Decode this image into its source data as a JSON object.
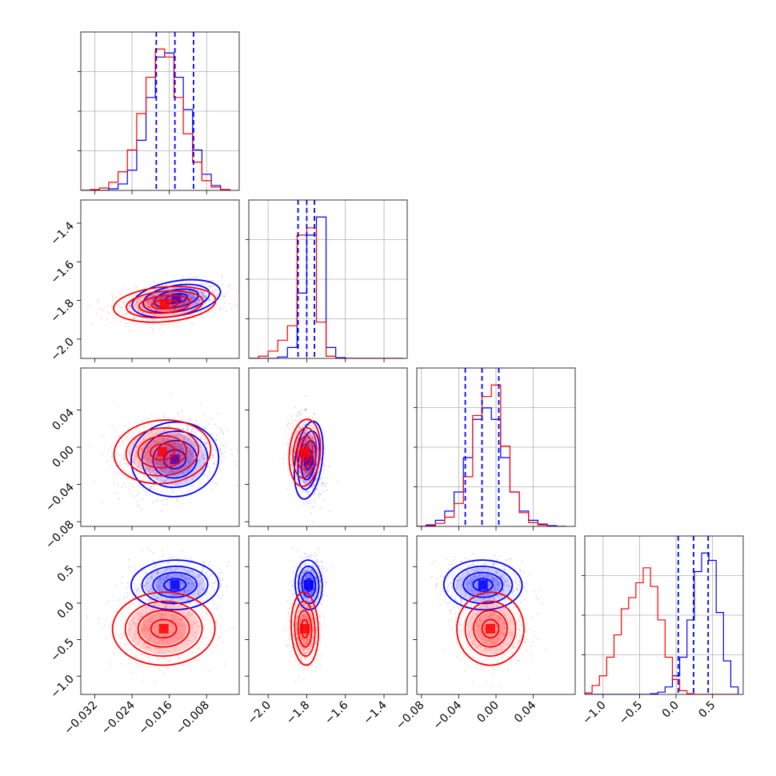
{
  "chart_data": {
    "type": "corner",
    "parameters": 4,
    "colors": {
      "series_a": "#0000ff",
      "series_b": "#ff0000"
    },
    "grid": true,
    "axes": [
      {
        "range": [
          -0.035,
          -0.001
        ],
        "ticks": [
          -0.032,
          -0.024,
          -0.016,
          -0.008
        ],
        "tick_labels": [
          "−0.032",
          "−0.024",
          "−0.016",
          "−0.008"
        ]
      },
      {
        "range": [
          -2.1,
          -1.28
        ],
        "ticks": [
          -2.0,
          -1.8,
          -1.6,
          -1.4
        ],
        "tick_labels": [
          "−2.0",
          "−1.8",
          "−1.6",
          "−1.4"
        ]
      },
      {
        "range": [
          -0.085,
          0.085
        ],
        "ticks": [
          -0.08,
          -0.04,
          0.0,
          0.04
        ],
        "tick_labels": [
          "−0.08",
          "−0.04",
          "0.00",
          "0.04"
        ]
      },
      {
        "range": [
          -1.25,
          0.92
        ],
        "ticks": [
          -1.0,
          -0.5,
          0.0,
          0.5
        ],
        "tick_labels": [
          "−1.0",
          "−0.5",
          "0.0",
          "0.5"
        ]
      }
    ],
    "y_axes": {
      "1": {
        "range": [
          -2.1,
          -1.28
        ],
        "ticks": [
          -2.0,
          -1.8,
          -1.6,
          -1.4
        ],
        "tick_labels": [
          "−2.0",
          "−1.8",
          "−1.6",
          "−1.4"
        ]
      },
      "2": {
        "range": [
          -0.085,
          0.085
        ],
        "ticks": [
          -0.08,
          -0.04,
          0.0,
          0.04
        ],
        "tick_labels": [
          "−0.08",
          "−0.04",
          "0.00",
          "0.04"
        ]
      },
      "3": {
        "range": [
          -1.25,
          0.92
        ],
        "ticks": [
          -1.0,
          -0.5,
          0.0,
          0.5
        ],
        "tick_labels": [
          "−1.0",
          "−0.5",
          "0.0",
          "0.5"
        ]
      }
    },
    "histograms": [
      {
        "param": 0,
        "bins": [
          -0.035,
          -0.033,
          -0.031,
          -0.029,
          -0.027,
          -0.025,
          -0.023,
          -0.021,
          -0.019,
          -0.017,
          -0.015,
          -0.013,
          -0.011,
          -0.009,
          -0.007,
          -0.005,
          -0.003
        ],
        "blue": [
          0,
          0,
          0,
          0.2,
          0.8,
          2.5,
          6.2,
          11.5,
          16.5,
          17.0,
          14.0,
          10.0,
          5.0,
          2.0,
          0.6,
          0.1
        ],
        "red": [
          0,
          0.1,
          0.3,
          1.0,
          2.3,
          5.0,
          9.5,
          14.0,
          17.5,
          16.5,
          11.5,
          7.0,
          3.5,
          1.2,
          0.4,
          0.1
        ],
        "quantiles": [
          -0.0188,
          -0.0148,
          -0.0108
        ]
      },
      {
        "param": 1,
        "bins": [
          -2.1,
          -2.05,
          -2.0,
          -1.95,
          -1.9,
          -1.85,
          -1.8,
          -1.75,
          -1.7,
          -1.65,
          -1.6,
          -1.55,
          -1.5,
          -1.45,
          -1.4,
          -1.35,
          -1.3
        ],
        "blue": [
          0,
          0,
          0,
          0.2,
          1.5,
          9.0,
          17.0,
          19.5,
          1.5,
          0.1,
          0,
          0,
          0,
          0,
          0,
          0
        ],
        "red": [
          0,
          0.3,
          1.0,
          2.5,
          4.5,
          17.0,
          18.0,
          5.0,
          0.3,
          0,
          0,
          0,
          0,
          0,
          0,
          0
        ],
        "quantiles": [
          -1.845,
          -1.8,
          -1.76
        ]
      },
      {
        "param": 2,
        "bins": [
          -0.085,
          -0.075,
          -0.065,
          -0.055,
          -0.045,
          -0.035,
          -0.025,
          -0.015,
          -0.005,
          0.005,
          0.015,
          0.025,
          0.035,
          0.045,
          0.055,
          0.065,
          0.075,
          0.085
        ],
        "blue": [
          0,
          0.2,
          0.8,
          2.0,
          4.5,
          9.0,
          14.0,
          15.5,
          14.0,
          9.0,
          4.5,
          2.0,
          0.8,
          0.3,
          0.1,
          0
        ],
        "red": [
          0,
          0.1,
          0.4,
          1.2,
          3.0,
          6.5,
          14.5,
          17.0,
          18.5,
          10.5,
          4.5,
          1.8,
          0.5,
          0.2,
          0,
          0
        ],
        "quantiles": [
          -0.033,
          -0.015,
          0.003
        ]
      },
      {
        "param": 3,
        "bins": [
          -1.25,
          -1.15,
          -1.05,
          -0.95,
          -0.85,
          -0.75,
          -0.65,
          -0.55,
          -0.45,
          -0.35,
          -0.25,
          -0.15,
          -0.05,
          0.05,
          0.15,
          0.25,
          0.35,
          0.45,
          0.55,
          0.65,
          0.75,
          0.85
        ],
        "blue": [
          0,
          0,
          0,
          0,
          0,
          0,
          0,
          0,
          0,
          0.1,
          0.3,
          1.0,
          2.5,
          5.0,
          10.0,
          16.5,
          19.0,
          18.0,
          11.0,
          4.5,
          1.0
        ],
        "red": [
          0.2,
          1.2,
          2.5,
          5.0,
          8.0,
          11.5,
          13.0,
          15.0,
          17.0,
          14.5,
          10.0,
          5.0,
          2.0,
          0.5,
          0.1,
          0,
          0,
          0,
          0,
          0,
          0
        ],
        "quantiles": [
          0.03,
          0.24,
          0.44
        ]
      }
    ],
    "pair_distributions": [
      {
        "x_param": 0,
        "y_param": 1,
        "blue": {
          "mean": [
            -0.0145,
            -1.79
          ],
          "sigma": [
            0.0048,
            0.045
          ],
          "rho": 0.4
        },
        "red": {
          "mean": [
            -0.017,
            -1.82
          ],
          "sigma": [
            0.0055,
            0.045
          ],
          "rho": 0.2
        }
      },
      {
        "x_param": 0,
        "y_param": 2,
        "blue": {
          "mean": [
            -0.0148,
            -0.013
          ],
          "sigma": [
            0.0047,
            0.02
          ],
          "rho": 0.25
        },
        "red": {
          "mean": [
            -0.0175,
            -0.005
          ],
          "sigma": [
            0.0052,
            0.017
          ],
          "rho": 0.2
        }
      },
      {
        "x_param": 1,
        "y_param": 2,
        "blue": {
          "mean": [
            -1.79,
            -0.014
          ],
          "sigma": [
            0.035,
            0.021
          ],
          "rho": -0.3
        },
        "red": {
          "mean": [
            -1.81,
            -0.006
          ],
          "sigma": [
            0.04,
            0.018
          ],
          "rho": -0.2
        }
      },
      {
        "x_param": 0,
        "y_param": 3,
        "blue": {
          "mean": [
            -0.0148,
            0.25
          ],
          "sigma": [
            0.0047,
            0.17
          ],
          "rho": 0.05
        },
        "red": {
          "mean": [
            -0.0172,
            -0.35
          ],
          "sigma": [
            0.0055,
            0.25
          ],
          "rho": 0.05
        }
      },
      {
        "x_param": 1,
        "y_param": 3,
        "blue": {
          "mean": [
            -1.79,
            0.25
          ],
          "sigma": [
            0.035,
            0.17
          ],
          "rho": 0.1
        },
        "red": {
          "mean": [
            -1.81,
            -0.35
          ],
          "sigma": [
            0.035,
            0.25
          ],
          "rho": 0.1
        }
      },
      {
        "x_param": 2,
        "y_param": 3,
        "blue": {
          "mean": [
            -0.014,
            0.25
          ],
          "sigma": [
            0.021,
            0.17
          ],
          "rho": -0.05
        },
        "red": {
          "mean": [
            -0.006,
            -0.35
          ],
          "sigma": [
            0.018,
            0.25
          ],
          "rho": -0.05
        }
      }
    ]
  }
}
